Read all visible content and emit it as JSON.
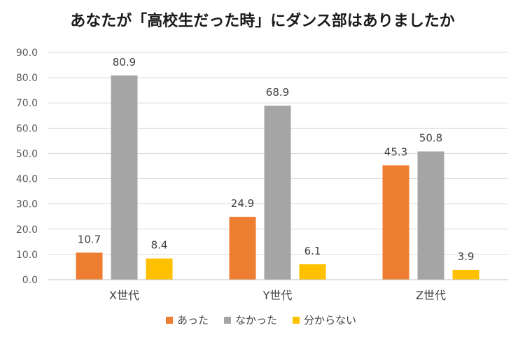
{
  "chart_data": {
    "type": "bar",
    "title": "あなたが「高校生だった時」にダンス部はありましたか",
    "categories": [
      "X世代",
      "Y世代",
      "Z世代"
    ],
    "series": [
      {
        "name": "あった",
        "color": "#ED7D31",
        "values": [
          10.7,
          24.9,
          45.3
        ]
      },
      {
        "name": "なかった",
        "color": "#A5A5A5",
        "values": [
          80.9,
          68.9,
          50.8
        ]
      },
      {
        "name": "分からない",
        "color": "#FFC000",
        "values": [
          8.4,
          6.1,
          3.9
        ]
      }
    ],
    "ylim": [
      0,
      90
    ],
    "yticks": [
      "0.0",
      "10.0",
      "20.0",
      "30.0",
      "40.0",
      "50.0",
      "60.0",
      "70.0",
      "80.0",
      "90.0"
    ],
    "grid": true,
    "legend": "bottom",
    "xlabel": "",
    "ylabel": ""
  }
}
